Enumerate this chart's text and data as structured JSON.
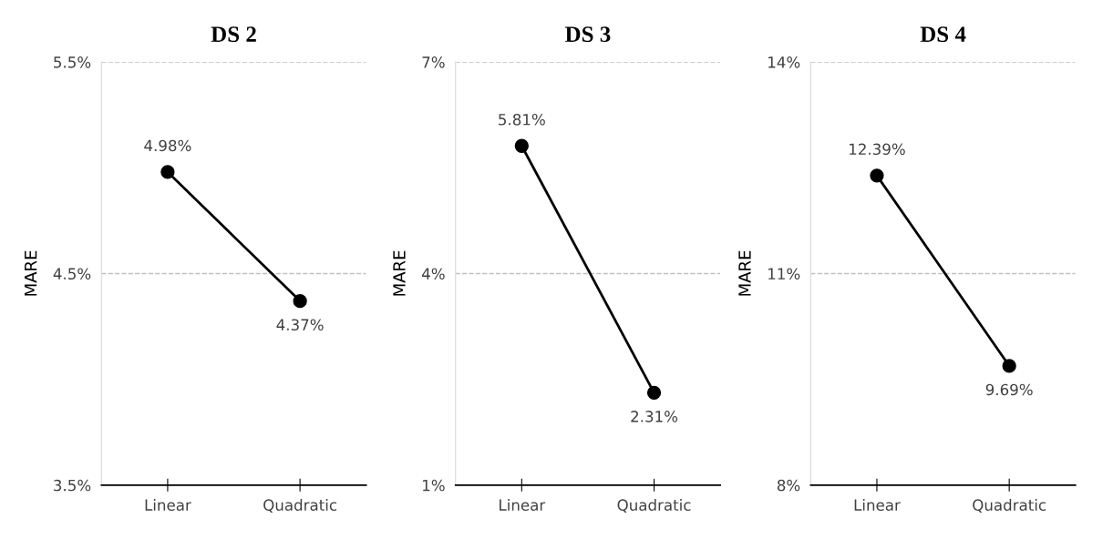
{
  "chart_data": [
    {
      "type": "line",
      "title": "DS 2",
      "ylabel": "MARE",
      "categories": [
        "Linear",
        "Quadratic"
      ],
      "series": [
        {
          "color": "#000000",
          "values": [
            4.98,
            4.37
          ],
          "value_labels": [
            "4.98%",
            "4.37%"
          ]
        }
      ],
      "ylim": [
        3.5,
        5.5
      ],
      "yticks": [
        {
          "value": 3.5,
          "label": "3.5%"
        },
        {
          "value": 4.5,
          "label": "4.5%"
        },
        {
          "value": 5.5,
          "label": "5.5%"
        }
      ],
      "grid": "y",
      "marker": "circle",
      "line_style": "solid"
    },
    {
      "type": "line",
      "title": "DS 3",
      "ylabel": "MARE",
      "categories": [
        "Linear",
        "Quadratic"
      ],
      "series": [
        {
          "color": "#000000",
          "values": [
            5.81,
            2.31
          ],
          "value_labels": [
            "5.81%",
            "2.31%"
          ]
        }
      ],
      "ylim": [
        1,
        7
      ],
      "yticks": [
        {
          "value": 1,
          "label": "1%"
        },
        {
          "value": 4,
          "label": "4%"
        },
        {
          "value": 7,
          "label": "7%"
        }
      ],
      "grid": "y",
      "marker": "circle",
      "line_style": "solid"
    },
    {
      "type": "line",
      "title": "DS 4",
      "ylabel": "MARE",
      "categories": [
        "Linear",
        "Quadratic"
      ],
      "series": [
        {
          "color": "#000000",
          "values": [
            12.39,
            9.69
          ],
          "value_labels": [
            "12.39%",
            "9.69%"
          ]
        }
      ],
      "ylim": [
        8,
        14
      ],
      "yticks": [
        {
          "value": 8,
          "label": "8%"
        },
        {
          "value": 11,
          "label": "11%"
        },
        {
          "value": 14,
          "label": "14%"
        }
      ],
      "grid": "y",
      "marker": "circle",
      "line_style": "solid"
    }
  ]
}
